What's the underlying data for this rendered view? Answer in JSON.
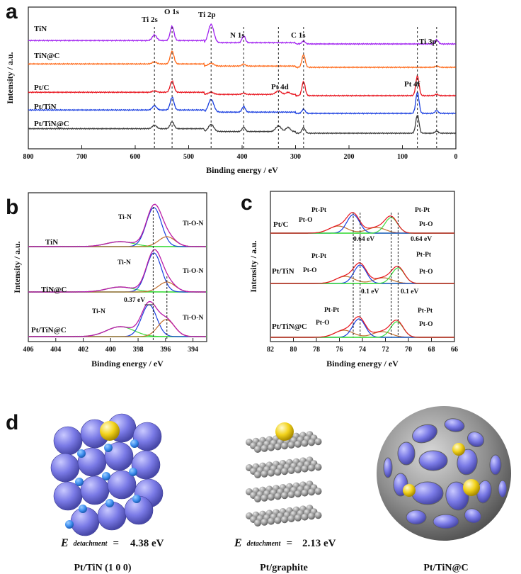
{
  "panel_letters": {
    "a": "a",
    "b": "b",
    "c": "c",
    "d": "d"
  },
  "colors": {
    "purple": "#a020f0",
    "orange": "#ff6a1a",
    "red": "#e8141e",
    "blue": "#1a3fe0",
    "dark": "#3a3a3a",
    "green": "#3ddc3d",
    "teal": "#2aa6a6",
    "brown": "#c07030",
    "sphere_blue": "#7a7ae6",
    "sphere_gold": "#f2d21b",
    "gray": "#8c8c8c"
  },
  "chart_data": [
    {
      "type": "line",
      "panel": "a",
      "xlabel": "Binding energy / eV",
      "ylabel": "Intensity / a.u.",
      "xlim": [
        800,
        0
      ],
      "x_ticks": [
        800,
        700,
        600,
        500,
        400,
        300,
        200,
        100,
        0
      ],
      "series": [
        {
          "name": "TiN",
          "color": "#a020f0"
        },
        {
          "name": "TiN@C",
          "color": "#ff6a1a"
        },
        {
          "name": "Pt/C",
          "color": "#e8141e"
        },
        {
          "name": "Pt/TiN",
          "color": "#1a3fe0"
        },
        {
          "name": "Pt/TiN@C",
          "color": "#3a3a3a"
        }
      ],
      "peaks": [
        {
          "label": "Ti 2s",
          "x": 564
        },
        {
          "label": "O 1s",
          "x": 531
        },
        {
          "label": "Ti 2p",
          "x": 458
        },
        {
          "label": "N 1s",
          "x": 397
        },
        {
          "label": "C 1s",
          "x": 285
        },
        {
          "label": "Pt 4d",
          "x": 332
        },
        {
          "label": "Pt 4f",
          "x": 72
        },
        {
          "label": "Ti 3p",
          "x": 36
        }
      ]
    },
    {
      "type": "line",
      "panel": "b",
      "xlabel": "Binding energy / eV",
      "ylabel": "Intensity / a.u.",
      "xlim": [
        406,
        393
      ],
      "x_ticks": [
        406,
        404,
        402,
        400,
        398,
        396,
        394
      ],
      "series": [
        {
          "name": "TiN"
        },
        {
          "name": "TiN@C"
        },
        {
          "name": "Pt/TiN@C"
        }
      ],
      "annotations": [
        "Ti-N",
        "Ti-O-N",
        "0.37 eV"
      ],
      "peak_positions": {
        "Ti-N": 396.9,
        "Ti-O-N": 395.9,
        "Ti-N shifted": 397.2
      }
    },
    {
      "type": "line",
      "panel": "c",
      "xlabel": "Binding energy / eV",
      "ylabel": "Intensity / a.u.",
      "xlim": [
        82,
        66
      ],
      "x_ticks": [
        82,
        80,
        78,
        76,
        74,
        72,
        70,
        68,
        66
      ],
      "series": [
        {
          "name": "Pt/C"
        },
        {
          "name": "Pt/TiN"
        },
        {
          "name": "Pt/TiN@C"
        }
      ],
      "annotations": [
        "Pt-Pt",
        "Pt-O",
        "0.64 eV",
        "0.1 eV"
      ],
      "peak_positions": {
        "Pt/C": [
          74.8,
          71.5
        ],
        "Pt/TiN": [
          74.2,
          70.9
        ],
        "Pt/TiN@C": [
          74.3,
          71.0
        ]
      }
    }
  ],
  "panel_a": {
    "series_labels": [
      "TiN",
      "TiN@C",
      "Pt/C",
      "Pt/TiN",
      "Pt/TiN@C"
    ],
    "peak_labels": {
      "ti2s": "Ti 2s",
      "o1s": "O 1s",
      "ti2p": "Ti 2p",
      "n1s": "N 1s",
      "c1s": "C 1s",
      "pt4d": "Pt 4d",
      "pt4f": "Pt 4f",
      "ti3p": "Ti 3p"
    },
    "xlabel": "Binding energy / eV",
    "ylabel": "Intensity / a.u.",
    "ticks": [
      "800",
      "700",
      "600",
      "500",
      "400",
      "300",
      "200",
      "100",
      "0"
    ]
  },
  "panel_b": {
    "series_labels": [
      "TiN",
      "TiN@C",
      "Pt/TiN@C"
    ],
    "ti_n": "Ti-N",
    "ti_o_n": "Ti-O-N",
    "shift": "0.37 eV",
    "xlabel": "Binding energy / eV",
    "ylabel": "Intensity / a.u.",
    "ticks": [
      "406",
      "404",
      "402",
      "400",
      "398",
      "396",
      "394"
    ]
  },
  "panel_c": {
    "series_labels": [
      "Pt/C",
      "Pt/TiN",
      "Pt/TiN@C"
    ],
    "pt_pt": "Pt-Pt",
    "pt_o": "Pt-O",
    "shift1": "0.64 eV",
    "shift2": "0.1 eV",
    "xlabel": "Binding energy / eV",
    "ylabel": "Intensity / a.u.",
    "ticks": [
      "82",
      "80",
      "78",
      "76",
      "74",
      "72",
      "70",
      "68",
      "66"
    ]
  },
  "panel_d": {
    "models": [
      {
        "caption": "Pt/TiN (1 0 0)",
        "energy": "4.38 eV"
      },
      {
        "caption": "Pt/graphite",
        "energy": "2.13 eV"
      },
      {
        "caption": "Pt/TiN@C"
      }
    ],
    "energy_symbol": "E",
    "energy_subscript": "detachment",
    "equals": "="
  }
}
